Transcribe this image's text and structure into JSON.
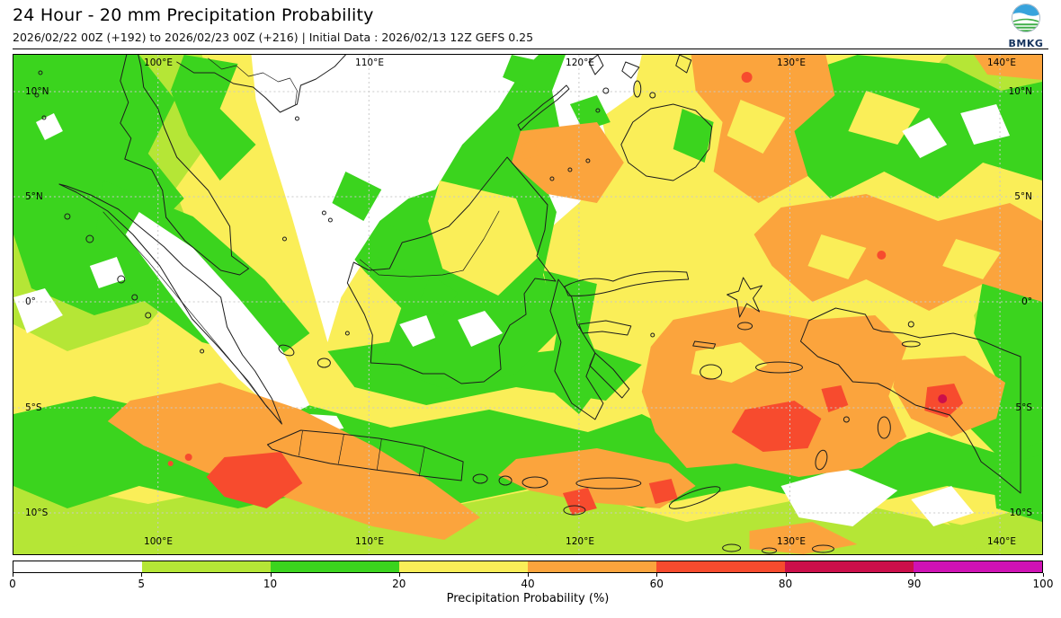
{
  "header": {
    "title": "24 Hour - 20 mm Precipitation Probability",
    "subtitle": "2026/02/22 00Z (+192) to 2026/02/23 00Z (+216) | Initial Data : 2026/02/13 12Z GEFS 0.25",
    "logo_text": "BMKG"
  },
  "map": {
    "lon_labels": [
      "100°E",
      "110°E",
      "120°E",
      "130°E",
      "140°E"
    ],
    "lat_labels": [
      "10°N",
      "5°N",
      "0°",
      "5°S",
      "10°S"
    ]
  },
  "colorbar": {
    "title": "Precipitation Probability (%)",
    "ticks": [
      "0",
      "5",
      "10",
      "20",
      "40",
      "60",
      "80",
      "90",
      "100"
    ],
    "segments": [
      {
        "range": "0-5",
        "color": "#ffffff"
      },
      {
        "range": "5-10",
        "color": "#b5e636"
      },
      {
        "range": "10-20",
        "color": "#3bd41e"
      },
      {
        "range": "20-40",
        "color": "#faee58"
      },
      {
        "range": "40-60",
        "color": "#fba43d"
      },
      {
        "range": "60-80",
        "color": "#f74b2e"
      },
      {
        "range": "80-90",
        "color": "#cc0f4a"
      },
      {
        "range": "90-100",
        "color": "#cf12b4"
      }
    ]
  }
}
